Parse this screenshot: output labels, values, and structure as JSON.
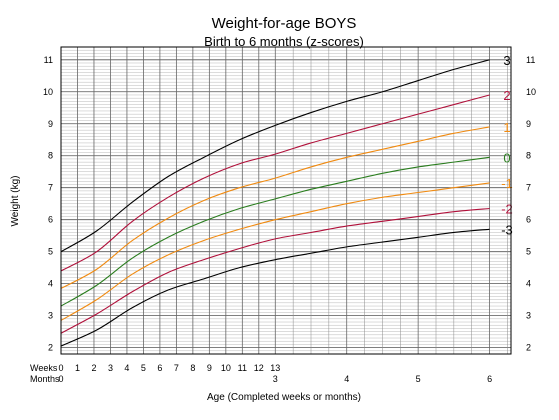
{
  "chart_data": {
    "type": "line",
    "title": "Weight-for-age BOYS",
    "subtitle": "Birth to 6 months (z-scores)",
    "xlabel": "Age (Completed weeks or months)",
    "ylabel": "Weight (kg)",
    "x_unit": "months",
    "xlim": [
      0,
      6.3
    ],
    "ylim": [
      1.8,
      11.4
    ],
    "grid": true,
    "y_ticks": [
      2,
      3,
      4,
      5,
      6,
      7,
      8,
      9,
      10,
      11
    ],
    "week_row_label": "Weeks",
    "month_row_label": "Months",
    "week_ticks": [
      "0",
      "1",
      "2",
      "3",
      "4",
      "5",
      "6",
      "7",
      "8",
      "9",
      "10",
      "11",
      "12",
      "13"
    ],
    "month_ticks": [
      "0",
      "3",
      "4",
      "5",
      "6"
    ],
    "x": [
      0,
      0.5,
      1,
      1.5,
      2,
      2.5,
      3,
      3.5,
      4,
      4.5,
      5,
      5.5,
      6
    ],
    "series": [
      {
        "name": "3",
        "color": "#000000",
        "values": [
          5.0,
          5.65,
          6.55,
          7.35,
          7.95,
          8.5,
          8.95,
          9.35,
          9.7,
          10.0,
          10.35,
          10.7,
          11.0
        ]
      },
      {
        "name": "2",
        "color": "#b0103a",
        "values": [
          4.4,
          5.0,
          5.95,
          6.7,
          7.3,
          7.75,
          8.05,
          8.4,
          8.7,
          9.0,
          9.3,
          9.6,
          9.9
        ]
      },
      {
        "name": "1",
        "color": "#f08a10",
        "values": [
          3.85,
          4.45,
          5.35,
          6.05,
          6.6,
          7.0,
          7.3,
          7.65,
          7.95,
          8.2,
          8.45,
          8.7,
          8.9
        ]
      },
      {
        "name": "0",
        "color": "#2a7d1e",
        "values": [
          3.3,
          3.95,
          4.8,
          5.45,
          5.95,
          6.35,
          6.65,
          6.95,
          7.2,
          7.45,
          7.65,
          7.8,
          7.95
        ]
      },
      {
        "name": "-1",
        "color": "#f08a10",
        "values": [
          2.85,
          3.5,
          4.3,
          4.9,
          5.35,
          5.7,
          6.0,
          6.25,
          6.5,
          6.7,
          6.85,
          7.0,
          7.15
        ]
      },
      {
        "name": "-2",
        "color": "#b0103a",
        "values": [
          2.45,
          3.05,
          3.75,
          4.35,
          4.75,
          5.1,
          5.4,
          5.6,
          5.8,
          5.95,
          6.1,
          6.25,
          6.35
        ]
      },
      {
        "name": "-3",
        "color": "#000000",
        "values": [
          2.05,
          2.55,
          3.25,
          3.8,
          4.15,
          4.5,
          4.75,
          4.95,
          5.15,
          5.3,
          5.45,
          5.6,
          5.7
        ]
      }
    ]
  }
}
